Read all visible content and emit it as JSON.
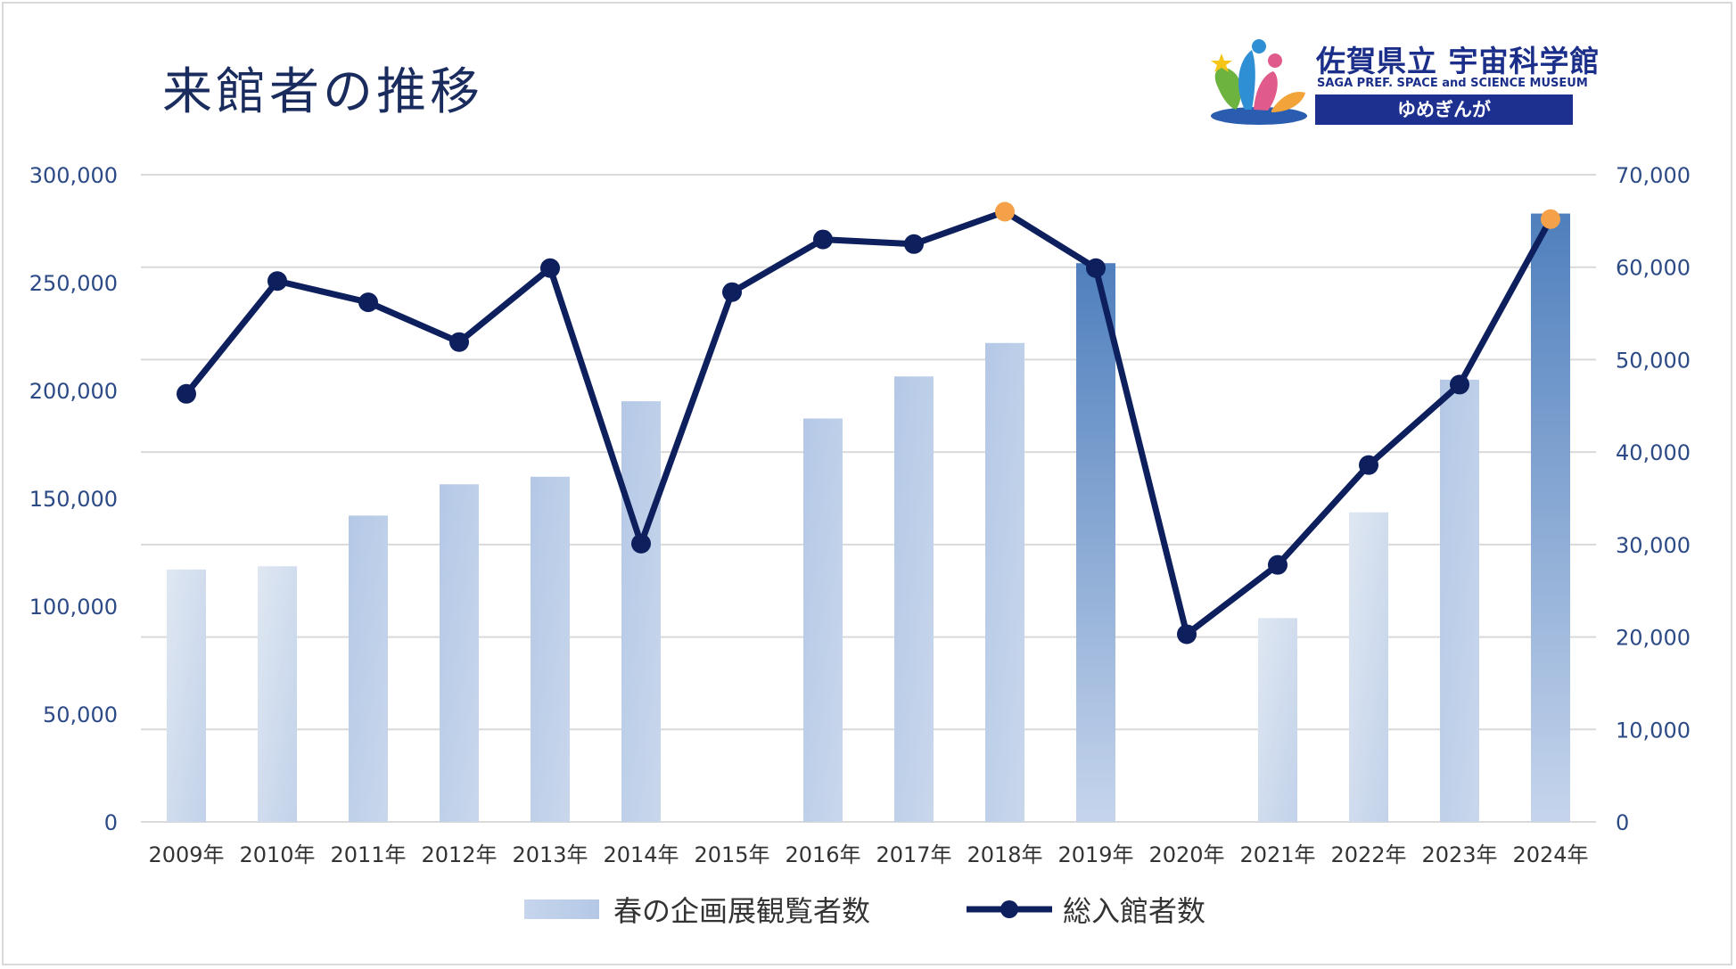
{
  "header": {
    "title": "来館者の推移"
  },
  "logo": {
    "name_ja": "佐賀県立 宇宙科学館",
    "name_en": "SAGA PREF. SPACE and SCIENCE MUSEUM",
    "nickname": "ゆめぎんが"
  },
  "colors": {
    "bar_light": "#dbe5f1",
    "bar_mid": "#a9bfe0",
    "bar_dark": "#4f7fbd",
    "line": "#0d1f5c",
    "highlight_marker": "#f4a14a",
    "grid": "#d9d9d9"
  },
  "chart_data": {
    "type": "bar",
    "title": "来館者の推移",
    "categories": [
      "2009年",
      "2010年",
      "2011年",
      "2012年",
      "2013年",
      "2014年",
      "2015年",
      "2016年",
      "2017年",
      "2018年",
      "2019年",
      "2020年",
      "2021年",
      "2022年",
      "2023年",
      "2024年"
    ],
    "series": [
      {
        "name": "春の企画展観覧者数",
        "type": "bar",
        "axis": "left",
        "values": [
          117000,
          118500,
          142000,
          156500,
          160000,
          195000,
          null,
          187000,
          206500,
          222000,
          259000,
          null,
          94500,
          143500,
          205000,
          282000
        ]
      },
      {
        "name": "総入館者数",
        "type": "line",
        "axis": "right",
        "values": [
          46300,
          58500,
          56200,
          51900,
          59900,
          30100,
          57300,
          63000,
          62500,
          66000,
          59900,
          20300,
          27800,
          38600,
          47300,
          65200
        ],
        "highlighted": [
          "2018年",
          "2024年"
        ]
      }
    ],
    "y_left": {
      "min": 0,
      "max": 300000,
      "ticks": [
        "0",
        "50,000",
        "100,000",
        "150,000",
        "200,000",
        "250,000",
        "300,000"
      ]
    },
    "y_right": {
      "min": 0,
      "max": 70000,
      "ticks": [
        "0",
        "10,000",
        "20,000",
        "30,000",
        "40,000",
        "50,000",
        "60,000",
        "70,000"
      ]
    },
    "grid": true,
    "legend_position": "bottom"
  }
}
